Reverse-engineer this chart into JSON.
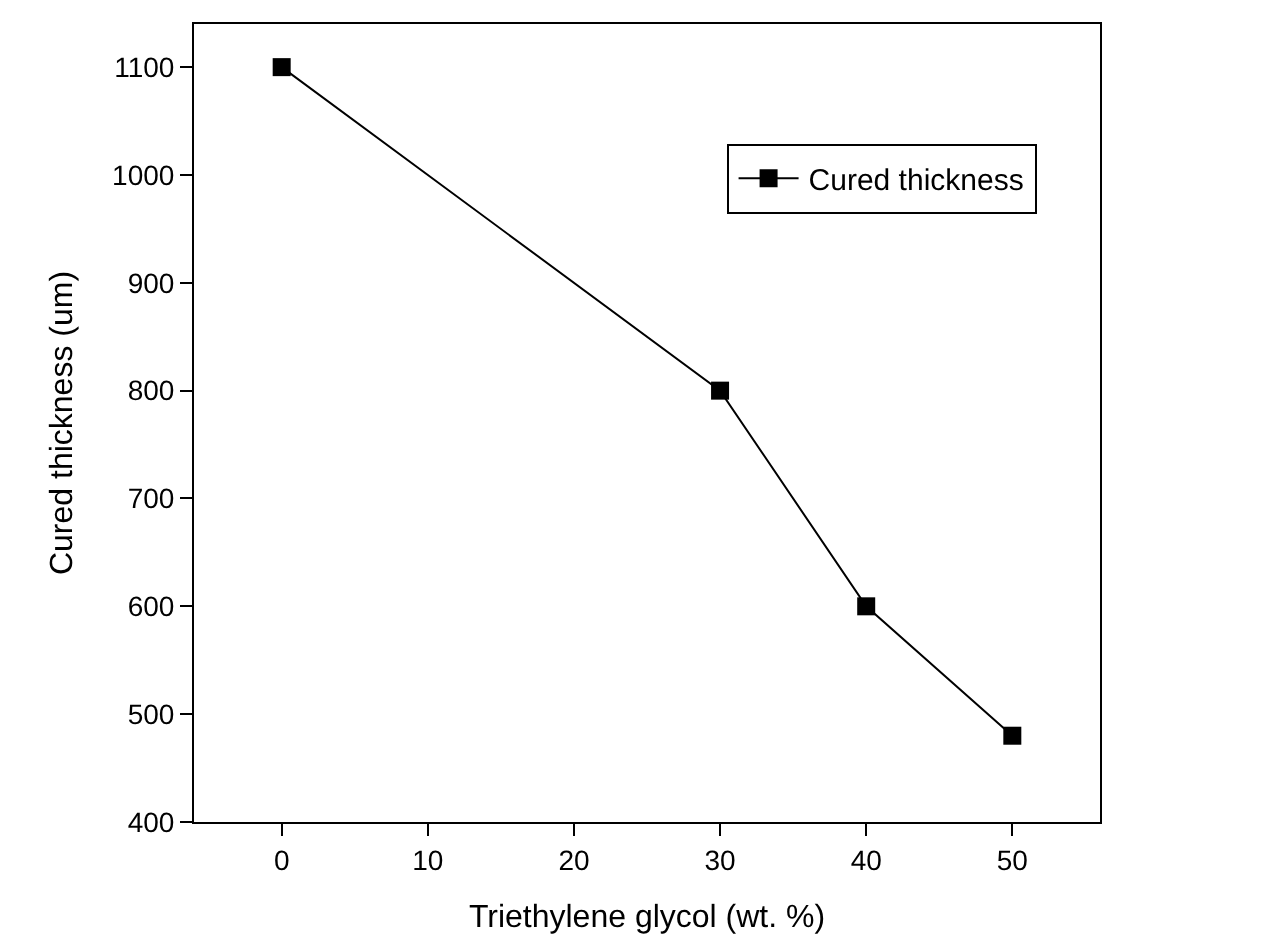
{
  "chart_data": {
    "type": "line",
    "xlabel": "Triethylene glycol (wt. %)",
    "ylabel": "Cured thickness (um)",
    "x": [
      0,
      30,
      40,
      50
    ],
    "series": [
      {
        "name": "Cured thickness",
        "color": "#000000",
        "values": [
          1100,
          800,
          600,
          480
        ]
      }
    ],
    "xlim": [
      -6,
      56
    ],
    "xticks": [
      0,
      10,
      20,
      30,
      40,
      50
    ],
    "ylim": [
      400,
      1140
    ],
    "yticks": [
      400,
      500,
      600,
      700,
      800,
      900,
      1000,
      1100
    ],
    "marker": "square",
    "line_style": "solid",
    "legend": "top right"
  }
}
